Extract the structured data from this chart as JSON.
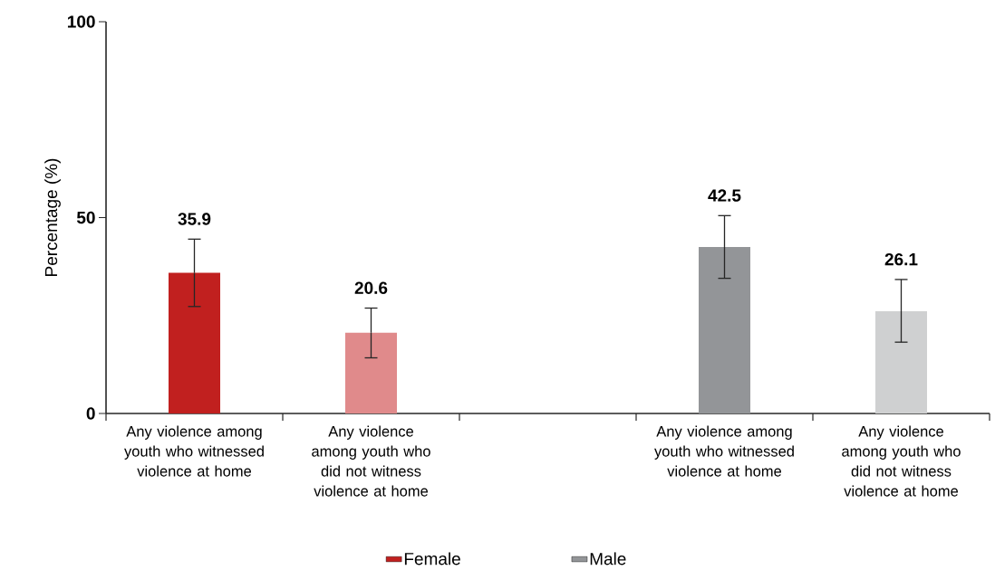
{
  "chart_data": {
    "type": "bar",
    "ylabel": "Percentage (%)",
    "categories": [
      "Any violence among youth who witnessed violence at home",
      "Any violence among youth who did not witness violence at home",
      null,
      "Any violence among youth who witnessed violence at home",
      "Any violence among youth who did not witness violence at home"
    ],
    "series": [
      {
        "name": "Female",
        "color": "#c1201f",
        "colors": [
          "#c1201f",
          "#e08a8b",
          null,
          null,
          null
        ],
        "values": [
          35.9,
          20.6,
          null,
          null,
          null
        ],
        "errors": [
          [
            27.3,
            44.5
          ],
          [
            14.2,
            26.9
          ],
          null,
          null,
          null
        ],
        "value_labels": [
          "35.9",
          "20.6",
          null,
          null,
          null
        ]
      },
      {
        "name": "Male",
        "color": "#939598",
        "colors": [
          null,
          null,
          null,
          "#939598",
          "#cfd0d1"
        ],
        "values": [
          null,
          null,
          null,
          42.5,
          26.1
        ],
        "errors": [
          null,
          null,
          null,
          [
            34.5,
            50.5
          ],
          [
            18.2,
            34.2
          ]
        ],
        "value_labels": [
          null,
          null,
          null,
          "42.5",
          "26.1"
        ]
      }
    ],
    "ylim": [
      0,
      100
    ],
    "yticks": [
      0,
      50,
      100
    ],
    "grid": false,
    "legend": "bottom"
  }
}
